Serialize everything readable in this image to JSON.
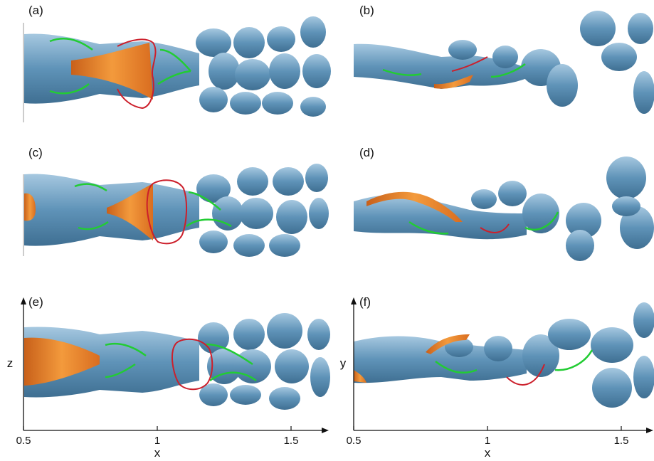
{
  "panels": [
    {
      "id": "a",
      "label": "(a)"
    },
    {
      "id": "b",
      "label": "(b)"
    },
    {
      "id": "c",
      "label": "(c)"
    },
    {
      "id": "d",
      "label": "(d)"
    },
    {
      "id": "e",
      "label": "(e)"
    },
    {
      "id": "f",
      "label": "(f)"
    }
  ],
  "axes": {
    "left": {
      "xlabel": "x",
      "ylabel": "z",
      "ticks": [
        "0.5",
        "1",
        "1.5"
      ]
    },
    "right": {
      "xlabel": "x",
      "ylabel": "y",
      "ticks": [
        "0.5",
        "1",
        "1.5"
      ]
    }
  },
  "colors": {
    "vortex_isosurface": "#5f93b8",
    "vortex_shadow": "#3f6f92",
    "vortex_highlight": "#a6c8e0",
    "recirculation_region": "#e9862e",
    "green_line": "#22cc33",
    "red_line": "#cc1f2b"
  }
}
